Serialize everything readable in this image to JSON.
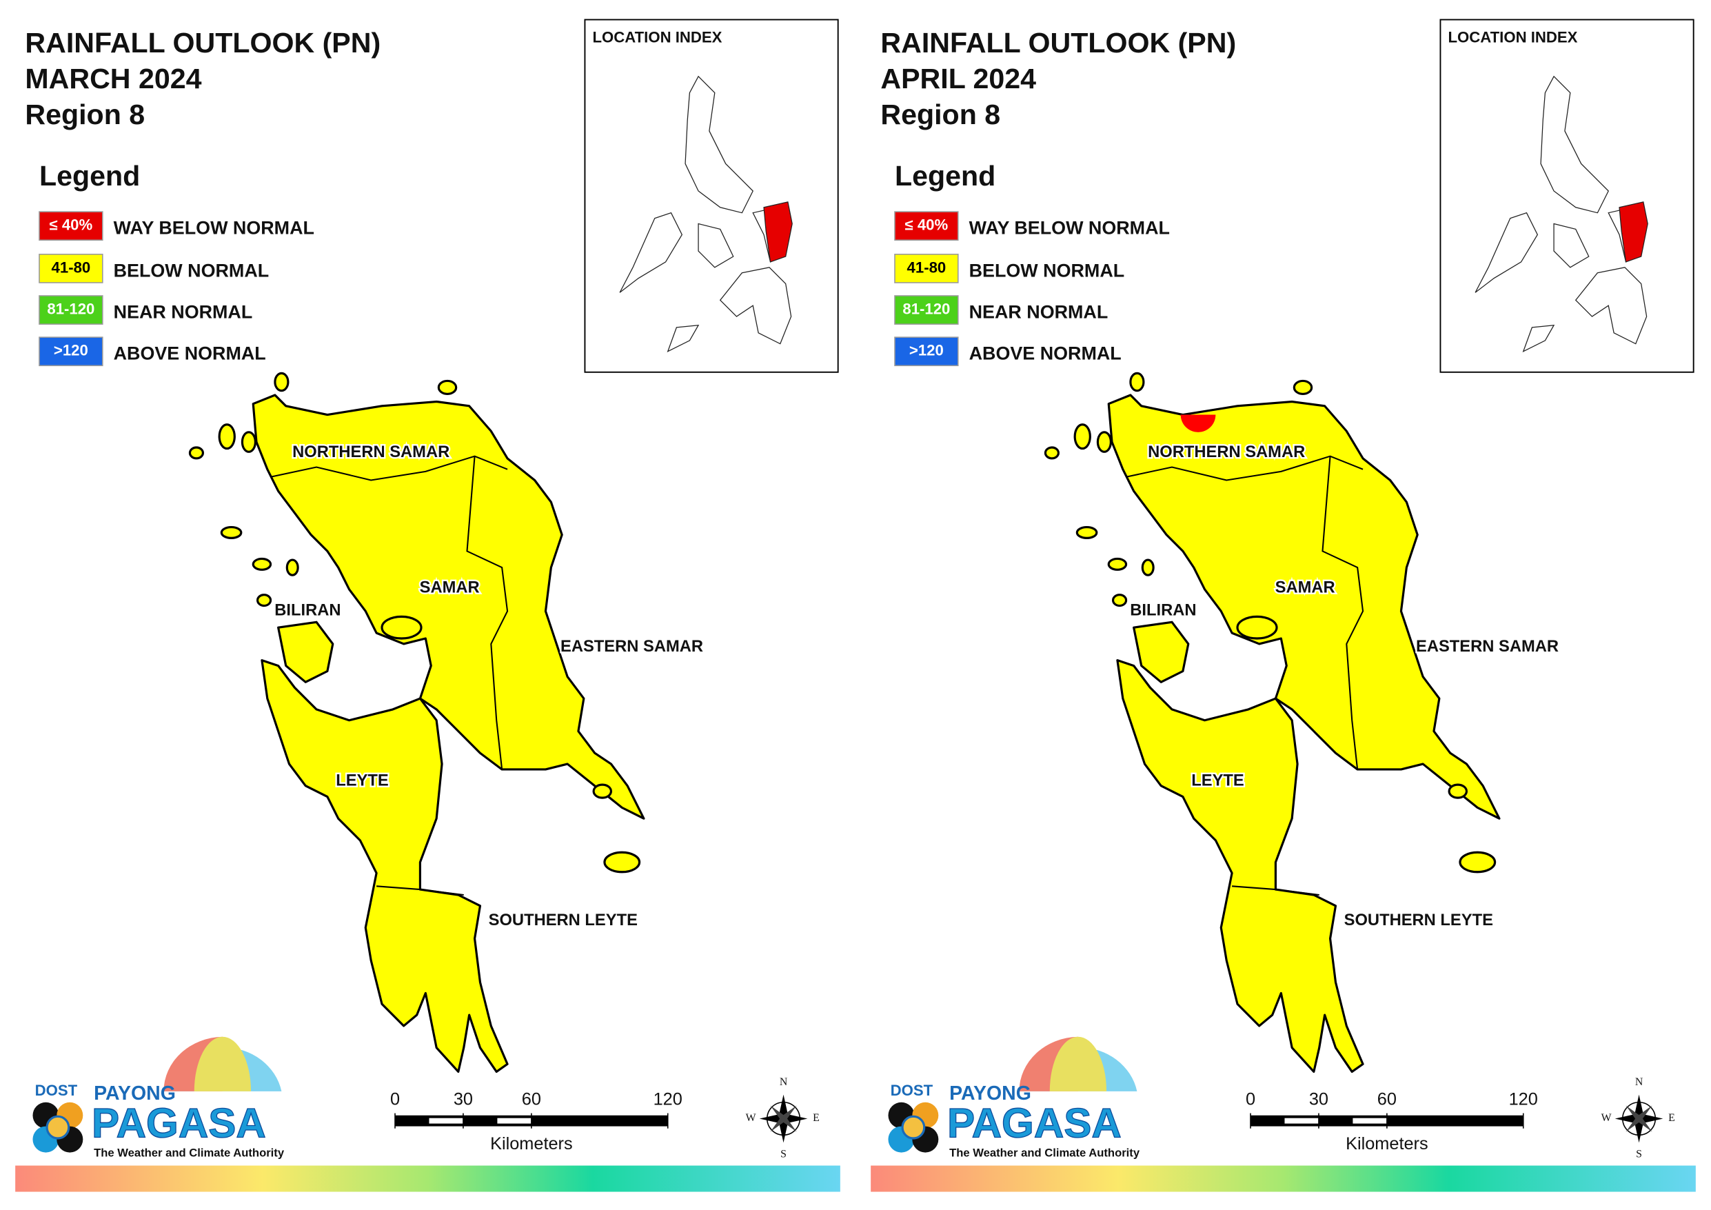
{
  "panels": [
    {
      "title": [
        "RAINFALL OUTLOOK (PN)",
        "MARCH 2024",
        "Region 8"
      ],
      "legend_title": "Legend",
      "legend": [
        {
          "key": "≤ 40%",
          "label": "WAY BELOW NORMAL",
          "color": "#e60000"
        },
        {
          "key": "41-80",
          "label": "BELOW NORMAL",
          "color": "#ffff00"
        },
        {
          "key": "81-120",
          "label": "NEAR NORMAL",
          "color": "#4cd11a"
        },
        {
          "key": ">120",
          "label": "ABOVE NORMAL",
          "color": "#1a66e6"
        }
      ],
      "location_index": "LOCATION INDEX",
      "provinces": [
        "NORTHERN SAMAR",
        "SAMAR",
        "BILIRAN",
        "EASTERN SAMAR",
        "LEYTE",
        "SOUTHERN LEYTE"
      ],
      "fill": "#ffff00",
      "scale": {
        "ticks": [
          0,
          30,
          60,
          120
        ],
        "unit": "Kilometers"
      },
      "compass": [
        "N",
        "E",
        "S",
        "W"
      ],
      "logo": {
        "agency": "DOST",
        "brand_top": "PAYONG",
        "brand": "PAGASA",
        "tagline": "The Weather and Climate Authority"
      }
    },
    {
      "title": [
        "RAINFALL OUTLOOK (PN)",
        "APRIL 2024",
        "Region 8"
      ],
      "legend_title": "Legend",
      "legend": [
        {
          "key": "≤ 40%",
          "label": "WAY BELOW NORMAL",
          "color": "#e60000"
        },
        {
          "key": "41-80",
          "label": "BELOW NORMAL",
          "color": "#ffff00"
        },
        {
          "key": "81-120",
          "label": "NEAR NORMAL",
          "color": "#4cd11a"
        },
        {
          "key": ">120",
          "label": "ABOVE NORMAL",
          "color": "#1a66e6"
        }
      ],
      "location_index": "LOCATION INDEX",
      "provinces": [
        "NORTHERN SAMAR",
        "SAMAR",
        "BILIRAN",
        "EASTERN SAMAR",
        "LEYTE",
        "SOUTHERN LEYTE"
      ],
      "fill": "#ffff00",
      "spot_color": "#ff0000",
      "scale": {
        "ticks": [
          0,
          30,
          60,
          120
        ],
        "unit": "Kilometers"
      },
      "compass": [
        "N",
        "E",
        "S",
        "W"
      ],
      "logo": {
        "agency": "DOST",
        "brand_top": "PAYONG",
        "brand": "PAGASA",
        "tagline": "The Weather and Climate Authority"
      }
    }
  ]
}
